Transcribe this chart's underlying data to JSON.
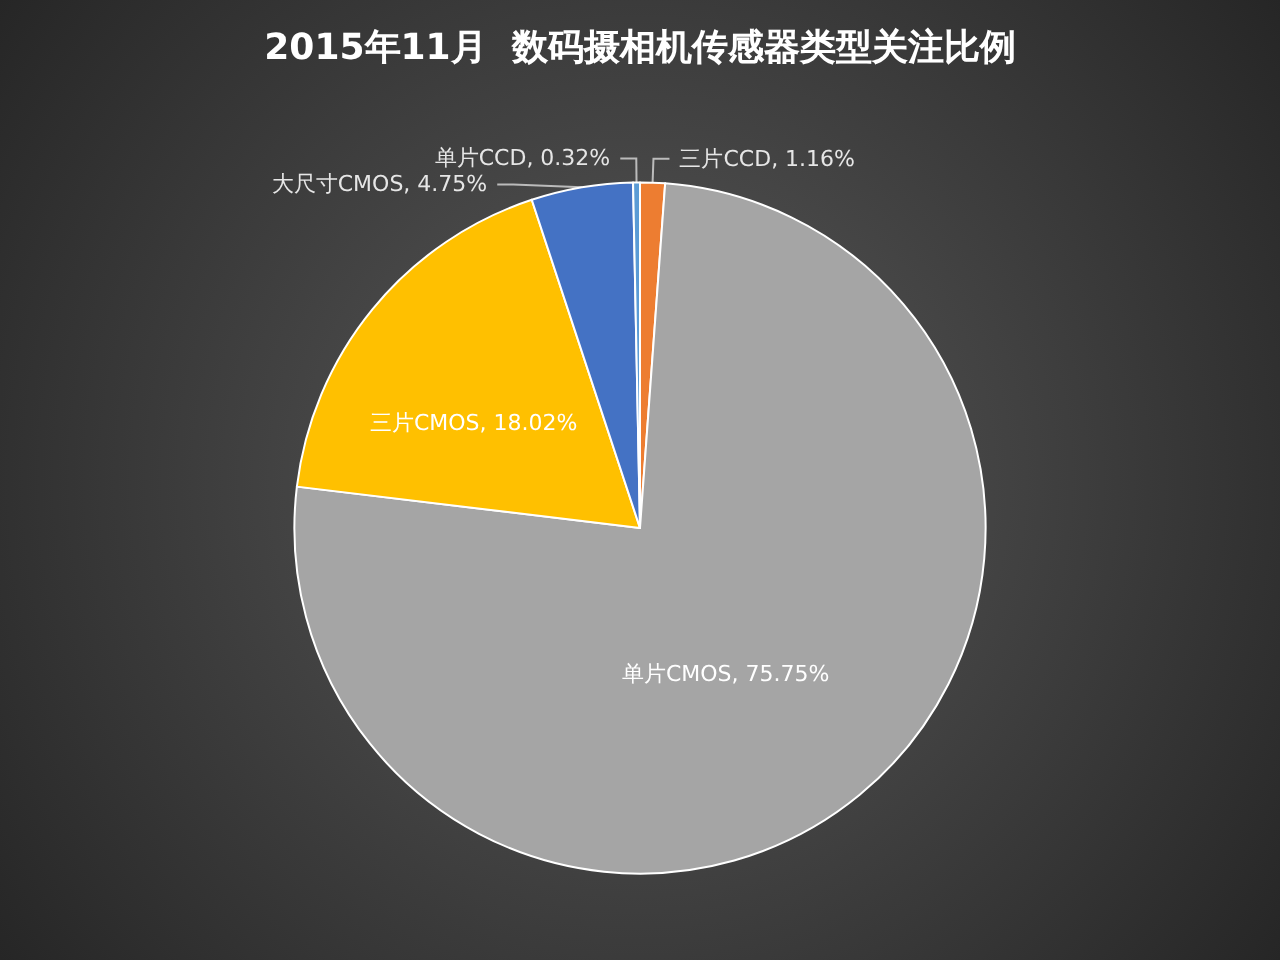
{
  "chart_data": {
    "type": "pie",
    "title": "2015年11月  数码摄相机传感器类型关注比例",
    "categories": [
      "三片CCD",
      "单片CMOS",
      "三片CMOS",
      "大尺寸CMOS",
      "单片CCD"
    ],
    "values": [
      1.16,
      75.75,
      18.02,
      4.75,
      0.32
    ],
    "colors": [
      "#ed7d31",
      "#a5a5a5",
      "#ffc000",
      "#4472c4",
      "#5b9bd5"
    ],
    "value_labels": [
      "1.16%",
      "75.75%",
      "18.02%",
      "4.75%",
      "0.32%"
    ],
    "legend": false
  }
}
